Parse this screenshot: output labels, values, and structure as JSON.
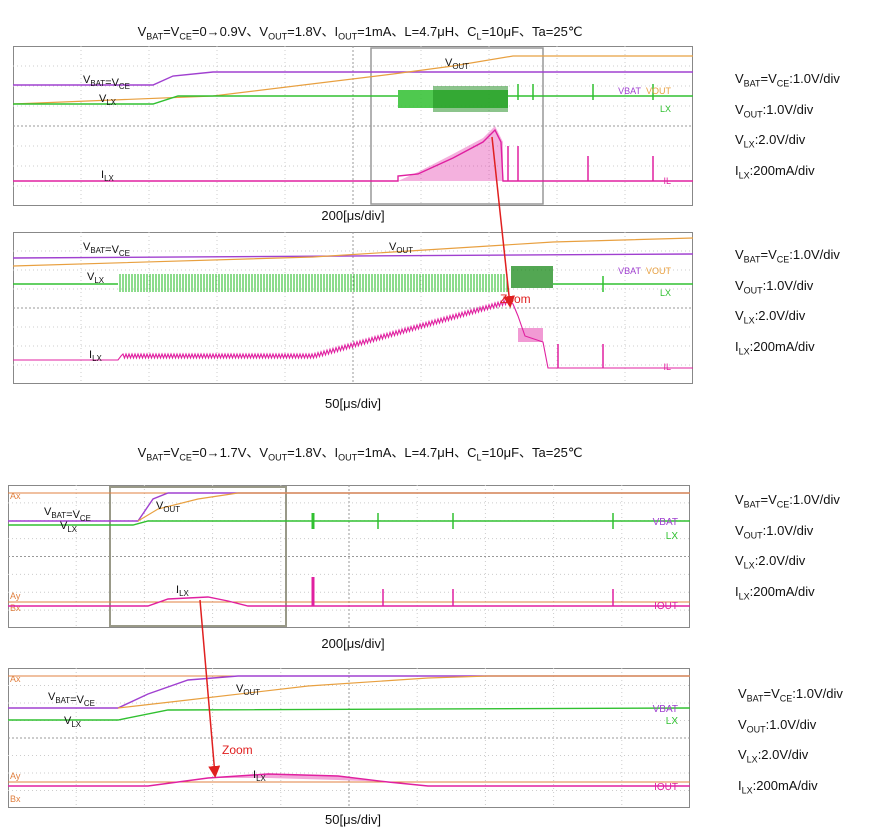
{
  "figure_titles": [
    "V_BAT=V_CE=0→0.9V、V_OUT=1.8V、I_OUT=1mA、L=4.7μH、C_L=10μF、Ta=25℃",
    "V_BAT=V_CE=0→1.7V、V_OUT=1.8V、I_OUT=1mA、L=4.7μH、C_L=10μF、Ta=25℃"
  ],
  "zoom_label": "Zoom",
  "colors": {
    "vbat": "#a040d0",
    "vout": "#e8a040",
    "vlx": "#30c030",
    "ilx": "#e020a0",
    "zoom_arrow": "#e02020",
    "ref": "#e08040"
  },
  "chart_data": [
    {
      "type": "line",
      "panel": "A1",
      "timebase": "200[μs/div]",
      "trace_labels": {
        "vbat": "V_BAT=V_CE",
        "vout": "V_OUT",
        "vlx": "V_LX",
        "ilx": "I_LX"
      },
      "right_labels": [
        "VBAT",
        "VOUT",
        "LX",
        "IL"
      ],
      "scales": [
        "V_BAT=V_CE:1.0V/div",
        "V_OUT:1.0V/div",
        "V_LX:2.0V/div",
        "I_LX:200mA/div"
      ],
      "series": [
        {
          "name": "V_BAT=V_CE",
          "x": [
            0,
            1.1,
            1.5,
            2.0,
            10
          ],
          "y": [
            0,
            0,
            0.75,
            0.9,
            0.9
          ]
        },
        {
          "name": "V_OUT",
          "x": [
            0,
            2.0,
            3.5,
            4.0,
            5.8,
            6.0,
            10
          ],
          "y": [
            0,
            0.4,
            1.0,
            1.4,
            1.8,
            1.8,
            1.8
          ]
        },
        {
          "name": "I_LX",
          "x": [
            0,
            2.9,
            3.3,
            3.7,
            3.8,
            10
          ],
          "y": [
            0,
            0,
            0.05,
            0.32,
            0.12,
            0
          ]
        }
      ]
    },
    {
      "type": "line",
      "panel": "A2",
      "timebase": "50[μs/div]",
      "trace_labels": {
        "vbat": "V_BAT=V_CE",
        "vout": "V_OUT",
        "vlx": "V_LX",
        "ilx": "I_LX"
      },
      "right_labels": [
        "VBAT",
        "VOUT",
        "LX",
        "IL"
      ],
      "scales": [
        "V_BAT=V_CE:1.0V/div",
        "V_OUT:1.0V/div",
        "V_LX:2.0V/div",
        "I_LX:200mA/div"
      ],
      "series": [
        {
          "name": "I_LX",
          "x": [
            0,
            0.8,
            5.0,
            7.3,
            7.4,
            10
          ],
          "y": [
            0,
            0.03,
            0.08,
            0.32,
            0.18,
            0
          ]
        }
      ]
    },
    {
      "type": "line",
      "panel": "B1",
      "timebase": "200[μs/div]",
      "trace_labels": {
        "vbat": "V_BAT=V_CE",
        "vout": "V_OUT",
        "vlx": "V_LX",
        "ilx": "I_LX"
      },
      "right_labels": [
        "VBAT",
        "LX",
        "IOUT"
      ],
      "scales": [
        "V_BAT=V_CE:1.0V/div",
        "V_OUT:1.0V/div",
        "V_LX:2.0V/div",
        "I_LX:200mA/div"
      ],
      "series": [
        {
          "name": "V_BAT=V_CE",
          "x": [
            0,
            1.0,
            1.4,
            10
          ],
          "y": [
            0,
            0,
            1.7,
            1.7
          ]
        },
        {
          "name": "V_OUT",
          "x": [
            0,
            1.0,
            2.2,
            10
          ],
          "y": [
            0,
            0,
            1.8,
            1.8
          ]
        }
      ]
    },
    {
      "type": "line",
      "panel": "B2",
      "timebase": "50[μs/div]",
      "trace_labels": {
        "vbat": "V_BAT=V_CE",
        "vout": "V_OUT",
        "vlx": "V_LX",
        "ilx": "I_LX"
      },
      "right_labels": [
        "VBAT",
        "LX",
        "IOUT"
      ],
      "scales": [
        "V_BAT=V_CE:1.0V/div",
        "V_OUT:1.0V/div",
        "V_LX:2.0V/div",
        "I_LX:200mA/div"
      ],
      "series": []
    }
  ]
}
